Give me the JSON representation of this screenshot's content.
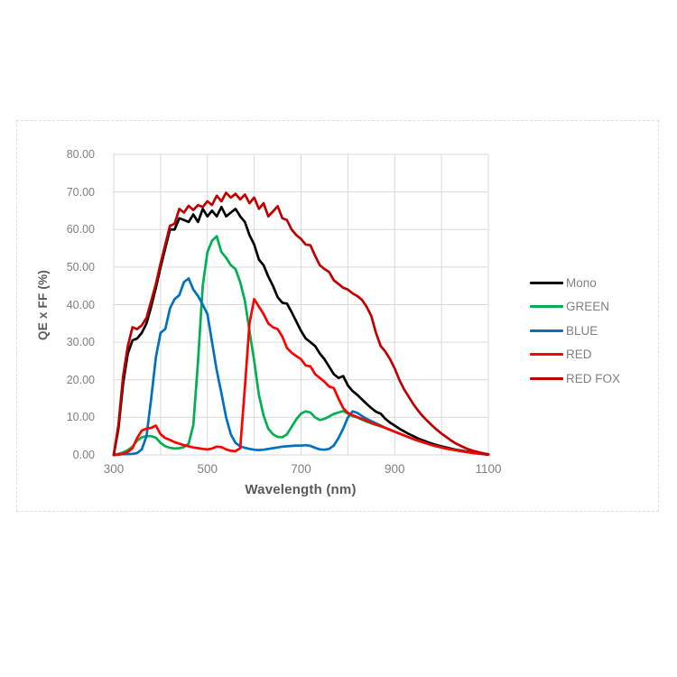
{
  "chart_data": {
    "type": "line",
    "title": "",
    "xlabel": "Wavelength (nm)",
    "ylabel": "QE x FF (%)",
    "xlim": [
      300,
      1100
    ],
    "ylim": [
      0,
      80
    ],
    "grid": true,
    "x_gridline_step": 100,
    "y_gridline_step": 10,
    "x_ticks": [
      300,
      500,
      700,
      900,
      1100
    ],
    "x_tick_labels": [
      "300",
      "500",
      "700",
      "900",
      "1100"
    ],
    "y_ticks": [
      0,
      10,
      20,
      30,
      40,
      50,
      60,
      70,
      80
    ],
    "y_tick_labels": [
      "0.00",
      "10.00",
      "20.00",
      "30.00",
      "40.00",
      "50.00",
      "60.00",
      "70.00",
      "80.00"
    ],
    "legend_position": "right",
    "x_start": 300,
    "x_step": 10,
    "colors": {
      "gridline": "#d9d9d9",
      "tick_text": "#7f7f7f",
      "axis_title_text": "#595959"
    },
    "series": [
      {
        "name": "Mono",
        "color": "#000000",
        "values": [
          0,
          7,
          19,
          27,
          30.5,
          31,
          32.5,
          35,
          39.5,
          44.5,
          50,
          55,
          60,
          60,
          63,
          62.5,
          62,
          64,
          62,
          65.5,
          63.5,
          65,
          63.5,
          66,
          63.5,
          64.5,
          65.5,
          63.5,
          62,
          58.5,
          56,
          52,
          50.5,
          47.5,
          45,
          42,
          40.5,
          40.3,
          38,
          35.5,
          33,
          31,
          30,
          29,
          27,
          25.5,
          23.5,
          21.5,
          20.5,
          21,
          18.5,
          17,
          16,
          14.8,
          13.6,
          12.5,
          11.5,
          11,
          9.6,
          8.6,
          7.8,
          7,
          6.3,
          5.6,
          5,
          4.4,
          3.9,
          3.4,
          3,
          2.6,
          2.3,
          2,
          1.7,
          1.4,
          1.2,
          1,
          0.8,
          0.6,
          0.4,
          0.25,
          0.1
        ]
      },
      {
        "name": "GREEN",
        "color": "#00b050",
        "values": [
          0,
          0.3,
          0.7,
          1.3,
          2.2,
          3.8,
          4.7,
          5,
          5,
          4.6,
          3.2,
          2.3,
          1.9,
          1.7,
          1.8,
          2.1,
          3,
          8,
          25,
          45,
          54,
          57,
          58.2,
          54,
          52.5,
          50.5,
          49.5,
          46,
          41,
          33,
          25,
          16,
          10.5,
          7,
          5.5,
          4.8,
          4.7,
          5.5,
          7.5,
          9.5,
          11,
          11.6,
          11.3,
          10,
          9.3,
          9.6,
          10.2,
          10.9,
          11.3,
          11.7,
          11,
          10.3,
          10,
          9.4,
          8.9,
          8.4,
          8,
          7.6,
          7.2,
          6.7,
          6.2,
          5.7,
          5.2,
          4.7,
          4.2,
          3.8,
          3.4,
          3,
          2.6,
          2.3,
          2,
          1.7,
          1.5,
          1.25,
          1.05,
          0.85,
          0.65,
          0.5,
          0.35,
          0.2,
          0.1
        ]
      },
      {
        "name": "BLUE",
        "color": "#0070c0",
        "values": [
          0,
          0.1,
          0.2,
          0.2,
          0.3,
          0.5,
          1.5,
          5,
          15,
          26,
          32.5,
          33.5,
          39,
          41.5,
          42.5,
          46,
          47,
          44,
          42.3,
          40,
          37.5,
          30,
          22.5,
          16.4,
          10,
          5.5,
          3.2,
          2.3,
          1.9,
          1.6,
          1.4,
          1.3,
          1.4,
          1.6,
          1.8,
          2,
          2.2,
          2.3,
          2.4,
          2.5,
          2.5,
          2.6,
          2.4,
          1.9,
          1.5,
          1.4,
          1.6,
          2.5,
          4.5,
          7,
          10,
          11.6,
          11.2,
          10.4,
          9.6,
          9,
          8.4,
          7.8,
          7.2,
          6.7,
          6.2,
          5.7,
          5.2,
          4.7,
          4.2,
          3.8,
          3.4,
          3,
          2.6,
          2.3,
          2,
          1.7,
          1.5,
          1.25,
          1.05,
          0.85,
          0.65,
          0.5,
          0.35,
          0.2,
          0.1
        ]
      },
      {
        "name": "RED",
        "color": "#ff0000",
        "values": [
          0,
          0.1,
          0.3,
          0.8,
          1.8,
          4.5,
          6.5,
          7,
          7.2,
          7.8,
          5.5,
          4.5,
          4,
          3.4,
          3,
          2.6,
          2.3,
          2,
          1.8,
          1.6,
          1.5,
          1.7,
          2.2,
          2.1,
          1.5,
          1.1,
          1,
          1.8,
          18,
          35,
          41.5,
          39.5,
          37.5,
          35,
          34,
          33.5,
          31.5,
          28.5,
          27.2,
          26.3,
          25.5,
          23.8,
          23.6,
          21.5,
          20.5,
          19.5,
          18.2,
          17.8,
          15,
          12.5,
          11.2,
          10.6,
          10.1,
          9.6,
          9.1,
          8.6,
          8.1,
          7.7,
          7.2,
          6.7,
          6.2,
          5.7,
          5.2,
          4.7,
          4.2,
          3.8,
          3.4,
          3,
          2.6,
          2.3,
          2,
          1.7,
          1.5,
          1.25,
          1.05,
          0.85,
          0.65,
          0.5,
          0.35,
          0.2,
          0.1
        ]
      },
      {
        "name": "RED FOX",
        "color": "#c00000",
        "values": [
          0,
          8,
          21,
          29,
          34,
          33.5,
          34.5,
          36.5,
          41,
          45.5,
          51,
          56,
          61,
          61.5,
          65.5,
          64.5,
          66.3,
          65.2,
          66.5,
          66,
          67.5,
          66.5,
          69,
          67.5,
          69.8,
          68.5,
          69.5,
          68,
          69.3,
          67,
          68.5,
          65.5,
          67,
          63.5,
          64.8,
          66.2,
          63,
          62.5,
          60,
          58.5,
          57.5,
          56,
          55.8,
          53,
          50.5,
          49.5,
          48.7,
          46.5,
          45.5,
          44.5,
          44,
          43,
          42.3,
          41.3,
          39.5,
          37,
          32.5,
          29,
          27.5,
          25.5,
          23,
          20,
          17.5,
          15.5,
          13.5,
          11.8,
          10.3,
          9,
          7.8,
          6.7,
          5.7,
          4.8,
          3.9,
          3.1,
          2.5,
          1.9,
          1.4,
          1,
          0.7,
          0.4,
          0.2
        ]
      }
    ]
  }
}
